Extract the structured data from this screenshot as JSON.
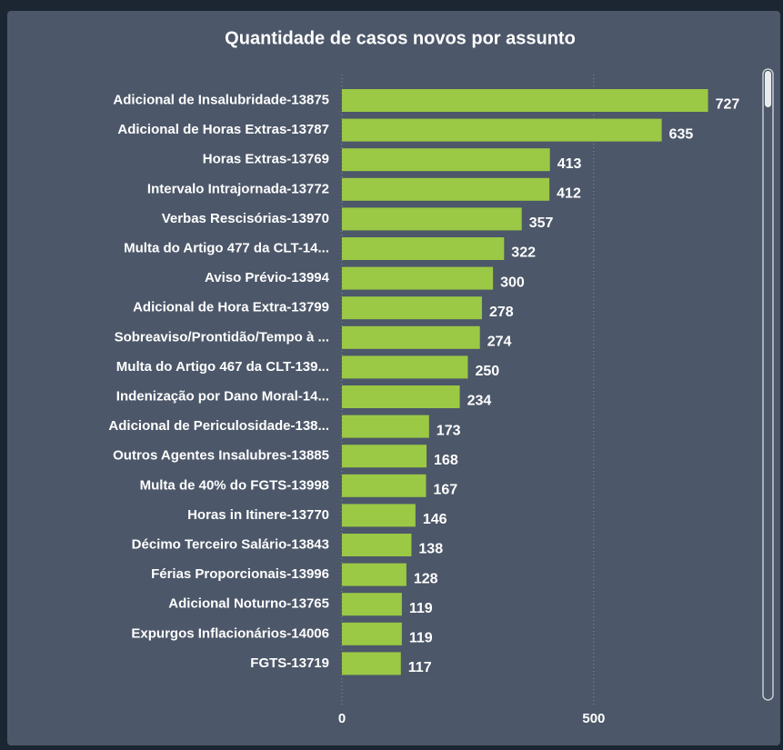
{
  "chart_data": {
    "type": "bar",
    "orientation": "horizontal",
    "title": "Quantidade de casos novos por assunto",
    "categories": [
      "Adicional de Insalubridade-13875",
      "Adicional de Horas Extras-13787",
      "Horas Extras-13769",
      "Intervalo Intrajornada-13772",
      "Verbas Rescisórias-13970",
      "Multa do Artigo 477 da CLT-14...",
      "Aviso Prévio-13994",
      "Adicional de Hora Extra-13799",
      "Sobreaviso/Prontidão/Tempo à ...",
      "Multa do Artigo 467 da CLT-139...",
      "Indenização por Dano Moral-14...",
      "Adicional de Periculosidade-138...",
      "Outros Agentes Insalubres-13885",
      "Multa de 40% do FGTS-13998",
      "Horas in Itinere-13770",
      "Décimo Terceiro Salário-13843",
      "Férias Proporcionais-13996",
      "Adicional Noturno-13765",
      "Expurgos Inflacionários-14006",
      "FGTS-13719"
    ],
    "values": [
      727,
      635,
      413,
      412,
      357,
      322,
      300,
      278,
      274,
      250,
      234,
      173,
      168,
      167,
      146,
      138,
      128,
      119,
      119,
      117
    ],
    "color": "#9bc845",
    "xlim": [
      0,
      800
    ],
    "xticks": [
      0,
      500
    ],
    "grid": true
  }
}
